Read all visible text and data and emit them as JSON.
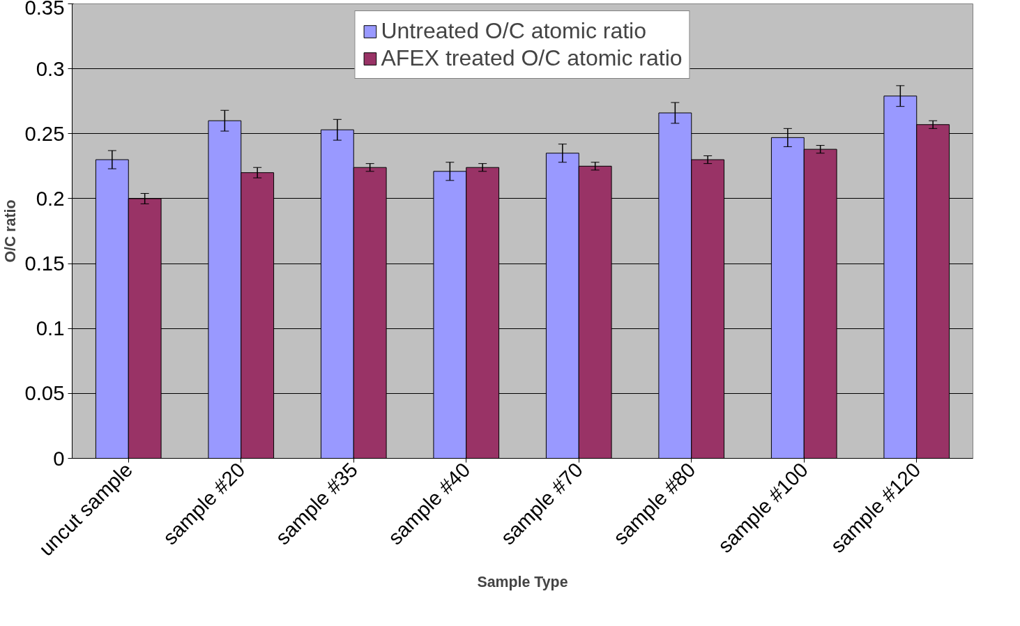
{
  "chart_data": {
    "type": "bar",
    "xlabel": "Sample Type",
    "ylabel": "O/C ratio",
    "categories": [
      "uncut sample",
      "sample #20",
      "sample #35",
      "sample #40",
      "sample #70",
      "sample #80",
      "sample #100",
      "sample #120"
    ],
    "series": [
      {
        "name": "Untreated O/C atomic ratio",
        "color": "#9999ff",
        "values": [
          0.23,
          0.26,
          0.253,
          0.221,
          0.235,
          0.266,
          0.247,
          0.279
        ],
        "errors": [
          0.007,
          0.008,
          0.008,
          0.007,
          0.007,
          0.008,
          0.007,
          0.008
        ]
      },
      {
        "name": "AFEX treated O/C atomic ratio",
        "color": "#993366",
        "values": [
          0.2,
          0.22,
          0.224,
          0.224,
          0.225,
          0.23,
          0.238,
          0.257
        ],
        "errors": [
          0.004,
          0.004,
          0.003,
          0.003,
          0.003,
          0.003,
          0.003,
          0.003
        ]
      }
    ],
    "ylim": [
      0,
      0.35
    ],
    "yticks": [
      0,
      0.05,
      0.1,
      0.15,
      0.2,
      0.25,
      0.3,
      0.35
    ],
    "grid": "y",
    "legend": "top"
  }
}
